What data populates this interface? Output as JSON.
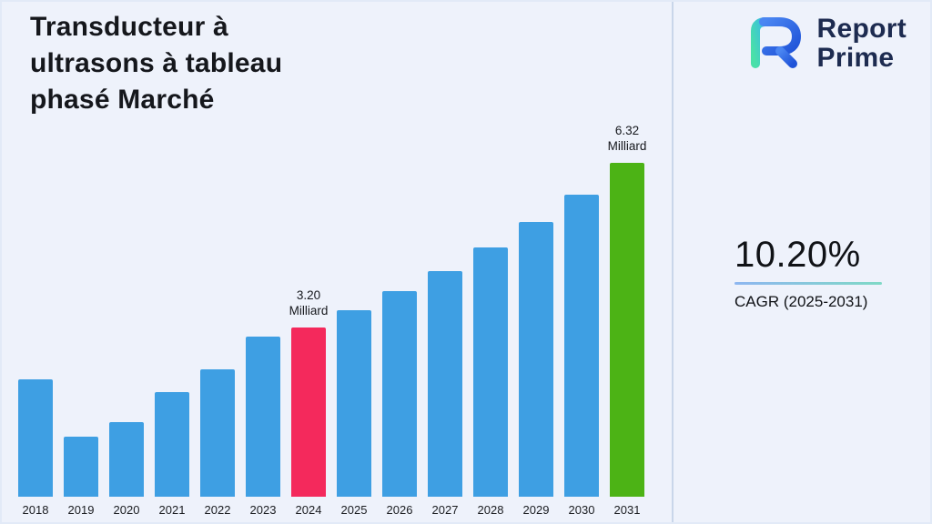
{
  "header": {
    "title_line1": "Transducteur à",
    "title_line2": "ultrasons à tableau",
    "title_line3": "phasé Marché"
  },
  "brand": {
    "name_line1": "Report",
    "name_line2": "Prime",
    "logo_icon": "report-prime-mark",
    "logo_blue": "#2f6bea",
    "logo_teal": "#3fd6a0"
  },
  "stats": {
    "cagr_value": "10.20%",
    "cagr_label": "CAGR (2025-2031)"
  },
  "chart_data": {
    "type": "bar",
    "title": "Transducteur à ultrasons à tableau phasé Marché",
    "unit": "Milliard",
    "categories": [
      "2018",
      "2019",
      "2020",
      "2021",
      "2022",
      "2023",
      "2024",
      "2025",
      "2026",
      "2027",
      "2028",
      "2029",
      "2030",
      "2031"
    ],
    "values": [
      2.22,
      1.13,
      1.42,
      1.98,
      2.42,
      3.03,
      3.2,
      3.53,
      3.89,
      4.28,
      4.72,
      5.2,
      5.73,
      6.32
    ],
    "bar_color": "#3E9FE3",
    "highlights": {
      "2024": {
        "value": "3.20",
        "unit": "Milliard",
        "color": "#F4295C"
      },
      "2031": {
        "value": "6.32",
        "unit": "Milliard",
        "color": "#4CB315"
      }
    },
    "ylim": [
      0,
      7
    ],
    "grid": false,
    "legend": false,
    "xlabel": "",
    "ylabel": ""
  }
}
